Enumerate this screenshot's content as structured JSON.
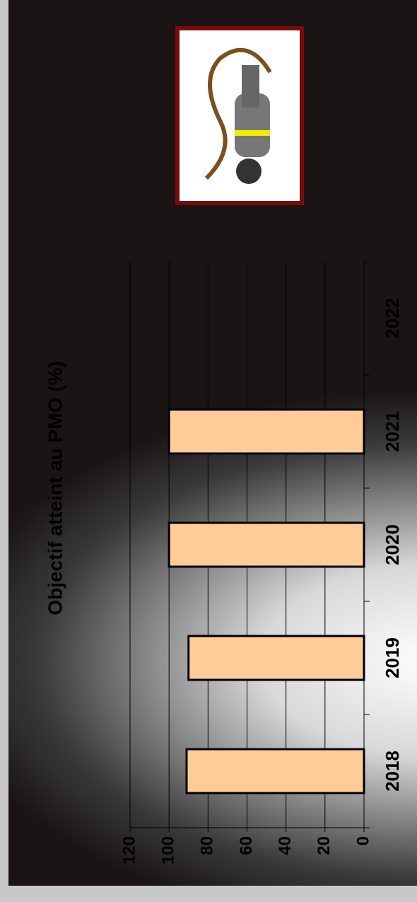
{
  "chart_data": {
    "type": "bar",
    "title": "Objectif atteint au PMO (%)",
    "categories": [
      "2018",
      "2019",
      "2020",
      "2021",
      "2022"
    ],
    "values": [
      91,
      90,
      100,
      100,
      null
    ],
    "color": "#ffcc99",
    "ylim": [
      0,
      120
    ],
    "yticks": [
      0,
      20,
      40,
      60,
      80,
      100,
      120
    ],
    "grid": true
  }
}
